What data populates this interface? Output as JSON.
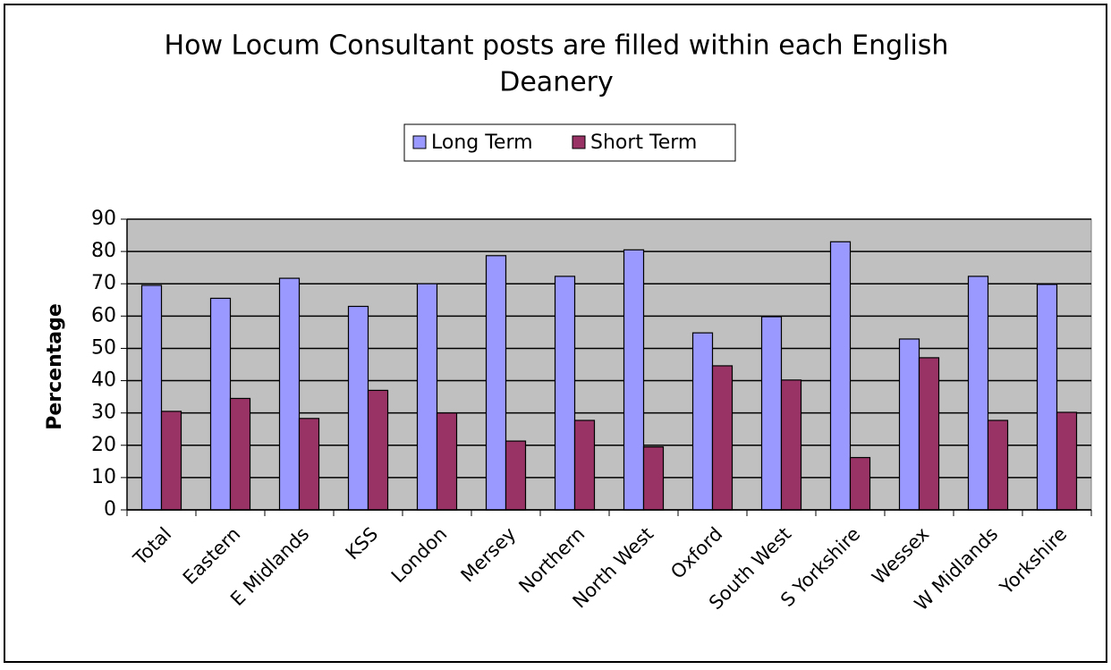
{
  "chart_data": {
    "type": "bar",
    "title": "How Locum Consultant posts are filled within each English Deanery",
    "y_label": "Percentage",
    "categories": [
      "Total",
      "Eastern",
      "E Midlands",
      "KSS",
      "London",
      "Mersey",
      "Northern",
      "North West",
      "Oxford",
      "South West",
      "S Yorkshire",
      "Wessex",
      "W Midlands",
      "Yorkshire"
    ],
    "series": [
      {
        "name": "Long Term",
        "color": "#9999ff",
        "values": [
          69.5,
          65.5,
          71.7,
          63,
          70,
          78.7,
          72.3,
          80.5,
          54.8,
          59.8,
          83,
          52.9,
          72.3,
          69.8
        ]
      },
      {
        "name": "Short Term",
        "color": "#993366",
        "values": [
          30.5,
          34.5,
          28.3,
          37,
          30,
          21.3,
          27.7,
          19.5,
          44.6,
          40.2,
          16.2,
          47.1,
          27.7,
          30.2
        ]
      }
    ],
    "ylim": [
      0,
      90
    ],
    "yticks": [
      0,
      10,
      20,
      30,
      40,
      50,
      60,
      70,
      80,
      90
    ],
    "grid": true,
    "legend": "top"
  }
}
